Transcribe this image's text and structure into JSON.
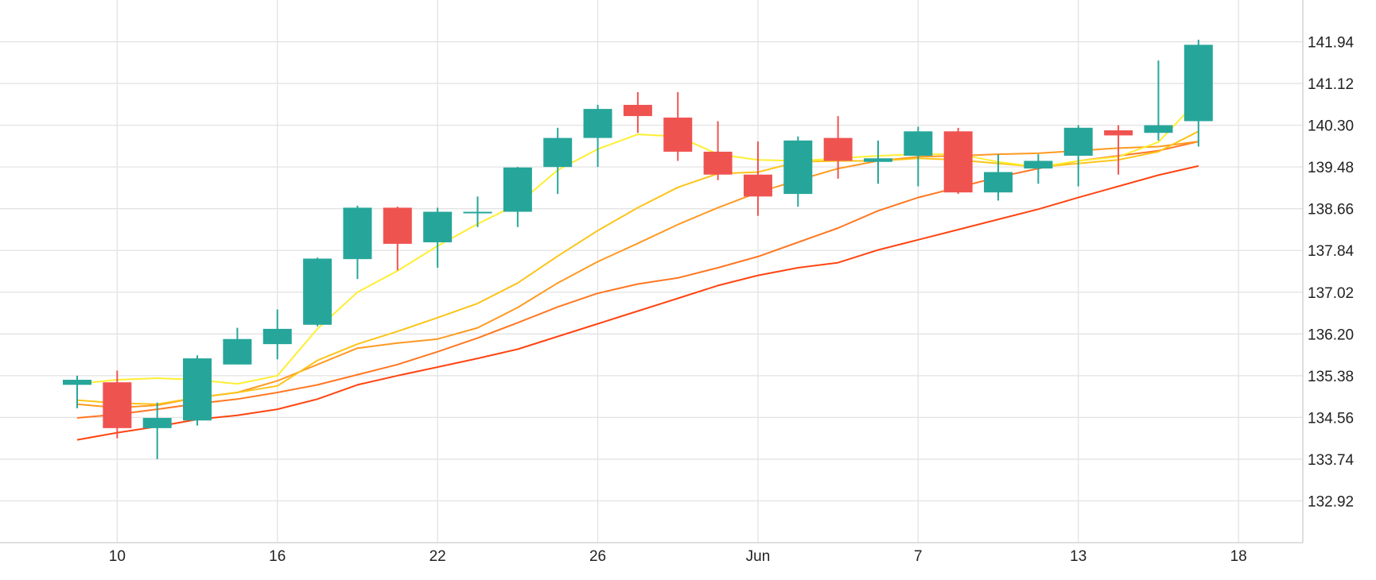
{
  "chart_data": {
    "type": "candlestick",
    "title": "",
    "xlabel": "",
    "ylabel": "",
    "ylim": [
      132.1,
      142.76
    ],
    "y_ticks": [
      132.92,
      133.74,
      134.56,
      135.38,
      136.2,
      137.02,
      137.84,
      138.66,
      139.48,
      140.3,
      141.12,
      141.94
    ],
    "y_tick_labels": [
      "132.92",
      "133.74",
      "134.56",
      "135.38",
      "136.20",
      "137.02",
      "137.84",
      "138.66",
      "139.48",
      "140.30",
      "141.12",
      "141.94"
    ],
    "x_ticks": [
      {
        "index": 1,
        "label": "10"
      },
      {
        "index": 5,
        "label": "16"
      },
      {
        "index": 9,
        "label": "22"
      },
      {
        "index": 13,
        "label": "26"
      },
      {
        "index": 17,
        "label": "Jun"
      },
      {
        "index": 21,
        "label": "7"
      },
      {
        "index": 25,
        "label": "13"
      },
      {
        "index": 29,
        "label": "18"
      }
    ],
    "grid": true,
    "colors": {
      "up": "#26a69a",
      "down": "#ef5350",
      "grid": "#e3e3e3",
      "axis": "#cccccc"
    },
    "candles": [
      {
        "o": 135.2,
        "h": 135.38,
        "l": 134.74,
        "c": 135.3
      },
      {
        "o": 135.25,
        "h": 135.48,
        "l": 134.15,
        "c": 134.35
      },
      {
        "o": 134.35,
        "h": 134.85,
        "l": 133.74,
        "c": 134.55
      },
      {
        "o": 134.5,
        "h": 135.78,
        "l": 134.4,
        "c": 135.72
      },
      {
        "o": 135.6,
        "h": 136.32,
        "l": 135.6,
        "c": 136.1
      },
      {
        "o": 136.0,
        "h": 136.68,
        "l": 135.7,
        "c": 136.3
      },
      {
        "o": 136.38,
        "h": 137.7,
        "l": 136.35,
        "c": 137.68
      },
      {
        "o": 137.67,
        "h": 138.72,
        "l": 137.28,
        "c": 138.68
      },
      {
        "o": 138.68,
        "h": 138.7,
        "l": 137.45,
        "c": 137.97
      },
      {
        "o": 138.0,
        "h": 138.68,
        "l": 137.5,
        "c": 138.6
      },
      {
        "o": 138.6,
        "h": 138.9,
        "l": 138.3,
        "c": 138.6
      },
      {
        "o": 138.6,
        "h": 139.48,
        "l": 138.3,
        "c": 139.47
      },
      {
        "o": 139.48,
        "h": 140.25,
        "l": 138.95,
        "c": 140.05
      },
      {
        "o": 140.05,
        "h": 140.7,
        "l": 139.48,
        "c": 140.62
      },
      {
        "o": 140.7,
        "h": 140.95,
        "l": 140.15,
        "c": 140.48
      },
      {
        "o": 140.45,
        "h": 140.95,
        "l": 139.6,
        "c": 139.78
      },
      {
        "o": 139.78,
        "h": 140.38,
        "l": 139.22,
        "c": 139.33
      },
      {
        "o": 139.33,
        "h": 139.98,
        "l": 138.52,
        "c": 138.9
      },
      {
        "o": 138.95,
        "h": 140.08,
        "l": 138.7,
        "c": 140.0
      },
      {
        "o": 140.05,
        "h": 140.48,
        "l": 139.25,
        "c": 139.6
      },
      {
        "o": 139.58,
        "h": 140.0,
        "l": 139.15,
        "c": 139.65
      },
      {
        "o": 139.7,
        "h": 140.27,
        "l": 139.1,
        "c": 140.18
      },
      {
        "o": 140.18,
        "h": 140.25,
        "l": 138.95,
        "c": 138.98
      },
      {
        "o": 138.98,
        "h": 139.73,
        "l": 138.82,
        "c": 139.38
      },
      {
        "o": 139.45,
        "h": 139.73,
        "l": 139.15,
        "c": 139.6
      },
      {
        "o": 139.7,
        "h": 140.3,
        "l": 139.1,
        "c": 140.25
      },
      {
        "o": 140.2,
        "h": 140.3,
        "l": 139.33,
        "c": 140.1
      },
      {
        "o": 140.15,
        "h": 141.57,
        "l": 140.0,
        "c": 140.3
      },
      {
        "o": 140.38,
        "h": 141.98,
        "l": 139.88,
        "c": 141.88
      }
    ],
    "series": [
      {
        "color": "#ffee33",
        "values": [
          135.22,
          135.3,
          135.33,
          135.3,
          135.22,
          135.38,
          136.3,
          137.02,
          137.44,
          137.93,
          138.36,
          138.75,
          139.42,
          139.83,
          140.12,
          140.08,
          139.73,
          139.62,
          139.6,
          139.65,
          139.7,
          139.73,
          139.73,
          139.58,
          139.48,
          139.6,
          139.68,
          139.97,
          140.8
        ]
      },
      {
        "color": "#fcc419",
        "values": [
          134.9,
          134.84,
          134.82,
          134.95,
          135.05,
          135.18,
          135.68,
          136.0,
          136.25,
          136.52,
          136.8,
          137.2,
          137.73,
          138.23,
          138.68,
          139.08,
          139.35,
          139.38,
          139.58,
          139.6,
          139.6,
          139.65,
          139.62,
          139.55,
          139.48,
          139.55,
          139.62,
          139.78,
          140.18
        ]
      },
      {
        "color": "#ff9922",
        "values": [
          134.82,
          134.75,
          134.8,
          134.95,
          135.05,
          135.28,
          135.6,
          135.92,
          136.02,
          136.1,
          136.32,
          136.72,
          137.2,
          137.62,
          137.98,
          138.35,
          138.68,
          138.98,
          139.22,
          139.45,
          139.6,
          139.68,
          139.7,
          139.73,
          139.75,
          139.8,
          139.85,
          139.88,
          139.98
        ]
      },
      {
        "color": "#ff7722",
        "values": [
          134.55,
          134.62,
          134.72,
          134.83,
          134.92,
          135.05,
          135.2,
          135.4,
          135.6,
          135.85,
          136.12,
          136.42,
          136.73,
          137.0,
          137.18,
          137.3,
          137.5,
          137.72,
          138.0,
          138.28,
          138.62,
          138.88,
          139.08,
          139.28,
          139.45,
          139.6,
          139.7,
          139.8,
          139.98
        ]
      },
      {
        "color": "#ff4411",
        "values": [
          134.12,
          134.26,
          134.38,
          134.52,
          134.6,
          134.72,
          134.92,
          135.2,
          135.38,
          135.55,
          135.72,
          135.9,
          136.15,
          136.4,
          136.65,
          136.9,
          137.15,
          137.35,
          137.5,
          137.6,
          137.85,
          138.05,
          138.25,
          138.45,
          138.65,
          138.88,
          139.1,
          139.32,
          139.5
        ]
      }
    ]
  }
}
